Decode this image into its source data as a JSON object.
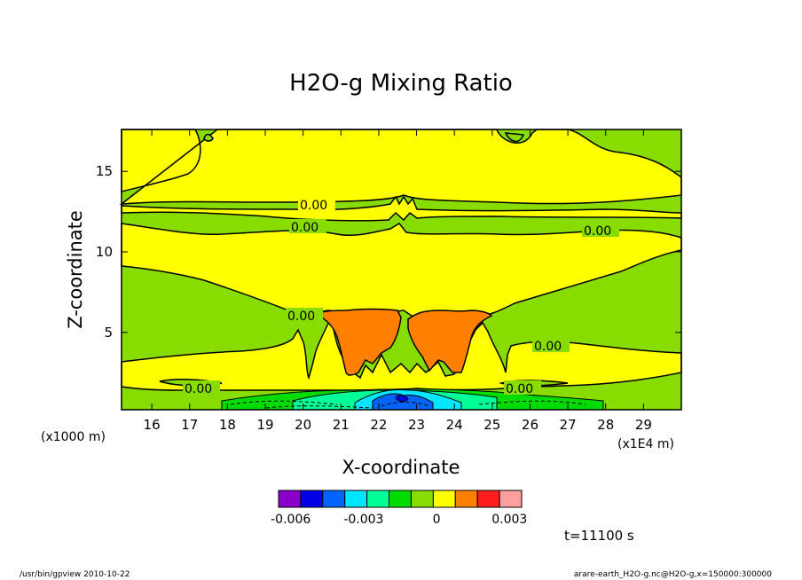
{
  "chart_data": {
    "type": "contour",
    "title": "H2O-g Mixing Ratio",
    "xlabel": "X-coordinate",
    "ylabel": "Z-coordinate",
    "x_scale_label": "(x1E4 m)",
    "y_scale_label": "(x1000 m)",
    "xlim": [
      15.2,
      30.0
    ],
    "ylim": [
      0.2,
      17.6
    ],
    "x_ticks": [
      16,
      17,
      18,
      19,
      20,
      21,
      22,
      23,
      24,
      25,
      26,
      27,
      28,
      29
    ],
    "y_ticks": [
      5,
      10,
      15
    ],
    "contour_label": "0.00",
    "colorbar": {
      "colors": [
        "#8a00c8",
        "#0000e6",
        "#0064ff",
        "#00e6ff",
        "#00ff96",
        "#00dc00",
        "#88dc00",
        "#ffff00",
        "#ff8000",
        "#ff1e1e",
        "#ff9f9f"
      ],
      "tick_labels": [
        "-0.006",
        "-0.003",
        "0",
        "0.003"
      ],
      "tick_values": [
        -0.006,
        -0.003,
        0,
        0.003
      ],
      "range": [
        -0.0065,
        0.0035
      ]
    },
    "time_label": "t=11100 s"
  },
  "footer": {
    "left": "/usr/bin/gpview  2010-10-22",
    "right": "arare-earth_H2O-g.nc@H2O-g,x=150000:300000"
  }
}
